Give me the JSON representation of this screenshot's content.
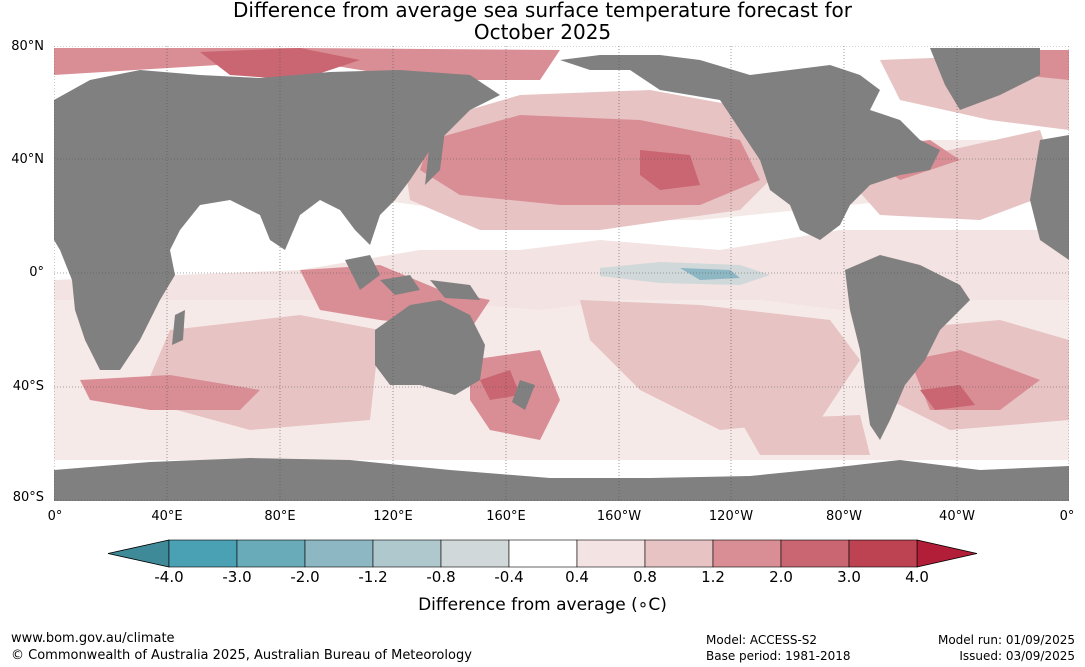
{
  "title": {
    "line1": "Difference from average sea surface temperature forecast for",
    "line2": "October 2025"
  },
  "map": {
    "type": "heatmap",
    "lat_labels": [
      "80°N",
      "40°N",
      "0°",
      "40°S",
      "80°S"
    ],
    "lon_labels": [
      "0°",
      "40°E",
      "80°E",
      "120°E",
      "160°E",
      "160°W",
      "120°W",
      "80°W",
      "40°W",
      "0°"
    ],
    "land_color": "#808080",
    "ocean_color": "#ffffff",
    "anomaly_regions": [
      {
        "name": "north-atlantic-arctic-warm",
        "level": 3.0
      },
      {
        "name": "north-pacific-warm",
        "level": 2.0
      },
      {
        "name": "equatorial-pacific-cool",
        "level": -0.8
      },
      {
        "name": "maritime-continent-warm",
        "level": 2.0
      },
      {
        "name": "tasman-sea-warm",
        "level": 2.0
      },
      {
        "name": "south-atlantic-warm",
        "level": 2.0
      }
    ]
  },
  "colorbar": {
    "boundaries": [
      "-4.0",
      "-3.0",
      "-2.0",
      "-1.2",
      "-0.8",
      "-0.4",
      "0.4",
      "0.8",
      "1.2",
      "2.0",
      "3.0",
      "4.0"
    ],
    "colors": [
      "#4aa1b4",
      "#6aabba",
      "#8db7c3",
      "#aec8ce",
      "#d0d8da",
      "#ffffff",
      "#f3e3e2",
      "#e7c3c3",
      "#d98e95",
      "#c96672",
      "#bd4352"
    ],
    "under_color": "#3e8a98",
    "over_color": "#b21d37",
    "label": "Difference from average (∘C)"
  },
  "footer": {
    "url": "www.bom.gov.au/climate",
    "copyright": "© Commonwealth of Australia 2025, Australian Bureau of Meteorology",
    "model": "Model: ACCESS-S2",
    "base_period": "Base period: 1981-2018",
    "model_run": "Model run: 01/09/2025",
    "issued": "Issued: 03/09/2025"
  }
}
